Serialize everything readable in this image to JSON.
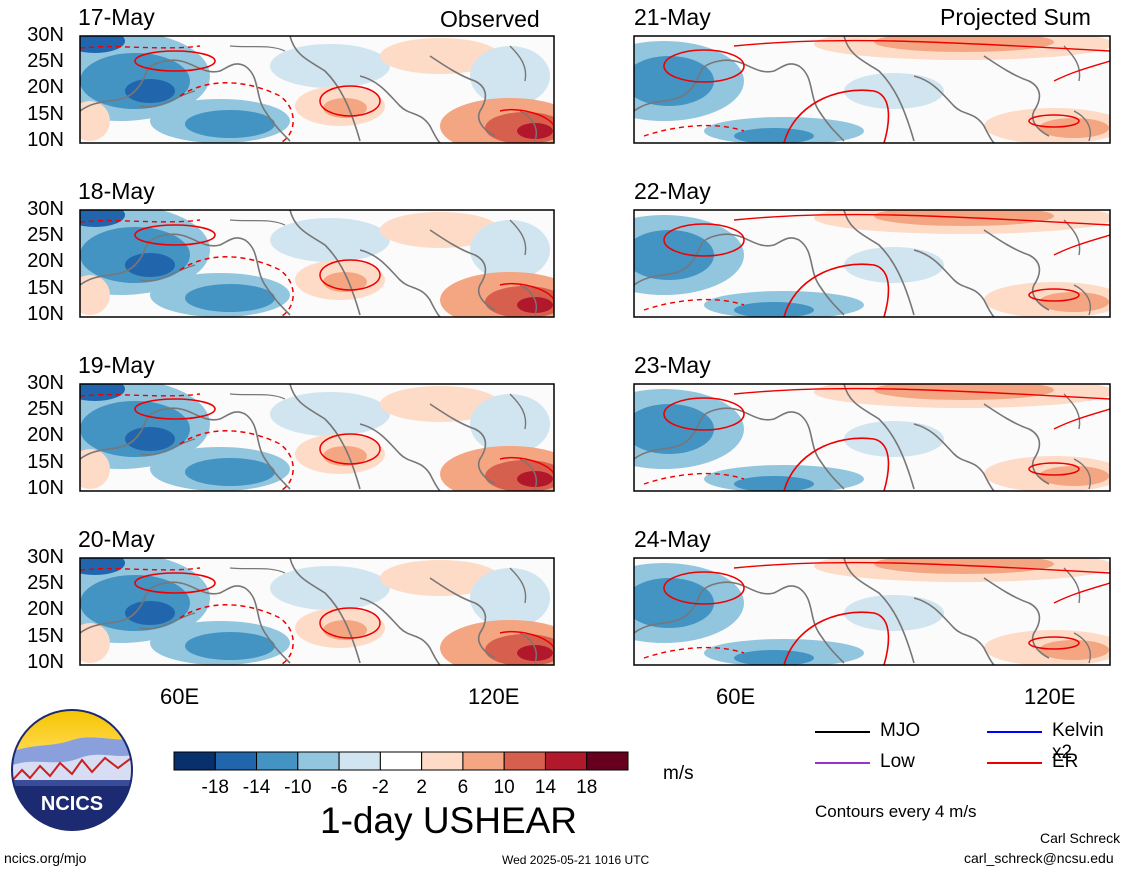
{
  "columns": {
    "left_title": "Observed",
    "right_title": "Projected Sum"
  },
  "panels": {
    "left": [
      "17-May",
      "18-May",
      "19-May",
      "20-May"
    ],
    "right": [
      "21-May",
      "22-May",
      "23-May",
      "24-May"
    ]
  },
  "lat_labels": [
    "30N",
    "25N",
    "20N",
    "15N",
    "10N"
  ],
  "lon_labels": [
    "60E",
    "120E"
  ],
  "colorbar": {
    "ticks": [
      "-18",
      "-14",
      "-10",
      "-6",
      "-2",
      "2",
      "6",
      "10",
      "14",
      "18"
    ],
    "colors": [
      "#08306b",
      "#2166ac",
      "#4393c3",
      "#92c5de",
      "#d1e5f0",
      "#ffffff",
      "#fddbc7",
      "#f4a582",
      "#d6604d",
      "#b2182b",
      "#67001f"
    ],
    "units": "m/s",
    "title": "1-day USHEAR"
  },
  "legend": {
    "items": [
      {
        "label": "MJO",
        "color": "#000000"
      },
      {
        "label": "Kelvin x2",
        "color": "#0000ff"
      },
      {
        "label": "Low",
        "color": "#9933cc"
      },
      {
        "label": "ER",
        "color": "#ee0000"
      }
    ],
    "contours": "Contours every 4 m/s"
  },
  "footer": {
    "logo_text": "NCICS",
    "url": "ncics.org/mjo",
    "timestamp": "Wed 2025-05-21 1016 UTC",
    "author": "Carl Schreck",
    "email": "carl_schreck@ncsu.edu"
  }
}
